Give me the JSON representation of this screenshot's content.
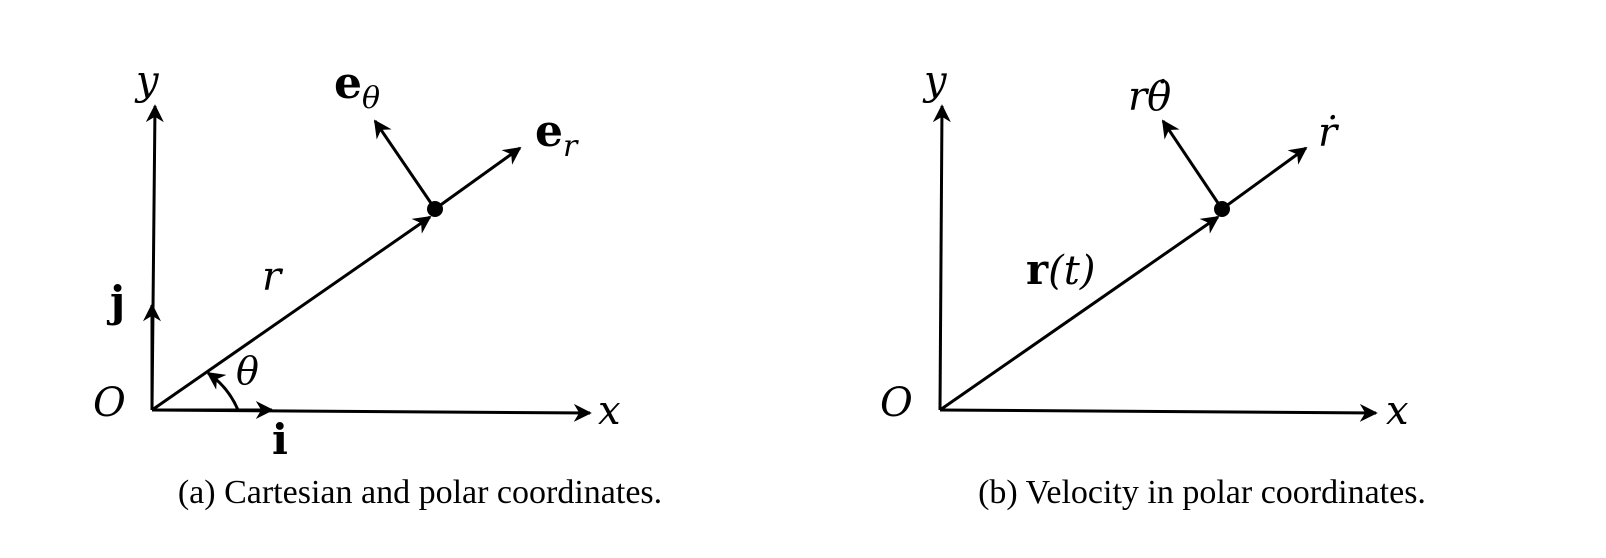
{
  "panel_a": {
    "caption": "(a) Cartesian and polar coordinates.",
    "labels": {
      "y_axis": "y",
      "x_axis": "x",
      "origin": "O",
      "unit_j": "j",
      "unit_i": "i",
      "radius": "r",
      "angle": "θ",
      "e_theta_base": "e",
      "e_theta_sub": "θ",
      "e_r_base": "e",
      "e_r_sub": "r"
    }
  },
  "panel_b": {
    "caption": "(b) Velocity in polar coordinates.",
    "labels": {
      "y_axis": "y",
      "x_axis": "x",
      "origin": "O",
      "position_bold": "r",
      "position_arg": "(t)",
      "transverse": "rθ̇",
      "radial": "ṙ"
    }
  }
}
